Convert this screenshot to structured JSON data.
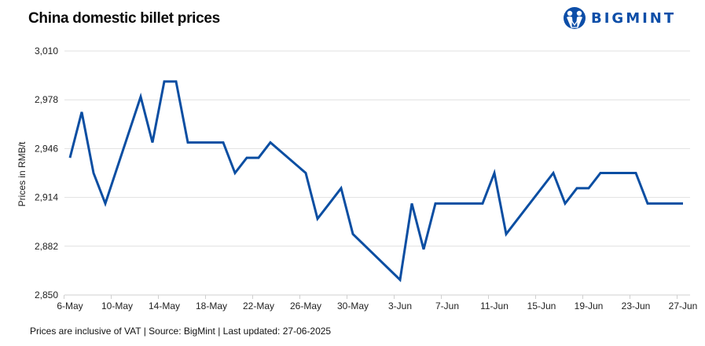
{
  "header": {
    "title": "China domestic billet prices",
    "logo_text": "BIGMINT",
    "logo_icon": "people-logo-icon"
  },
  "footer": {
    "note": "Prices are inclusive of VAT | Source: BigMint | Last updated: 27-06-2025"
  },
  "colors": {
    "line": "#0B4EA2",
    "grid": "#E0E0E0",
    "brand": "#0D4EA8"
  },
  "chart_data": {
    "type": "line",
    "title": "China domestic billet prices",
    "xlabel": "",
    "ylabel": "Prices in RMB/t",
    "ylim": [
      2850,
      3010
    ],
    "yticks": [
      "2,850",
      "2,882",
      "2,914",
      "2,946",
      "2,978",
      "3,010"
    ],
    "ytick_values": [
      2850,
      2882,
      2914,
      2946,
      2978,
      3010
    ],
    "xtick_labels": [
      "6-May",
      "10-May",
      "14-May",
      "18-May",
      "22-May",
      "26-May",
      "30-May",
      "3-Jun",
      "7-Jun",
      "11-Jun",
      "15-Jun",
      "19-Jun",
      "23-Jun",
      "27-Jun"
    ],
    "grid": true,
    "legend": null,
    "series": [
      {
        "name": "China domestic billet price",
        "points": [
          {
            "date": "6-May",
            "day": 0,
            "value": 2940
          },
          {
            "date": "7-May",
            "day": 1,
            "value": 2970
          },
          {
            "date": "8-May",
            "day": 2,
            "value": 2930
          },
          {
            "date": "9-May",
            "day": 3,
            "value": 2910
          },
          {
            "date": "12-May",
            "day": 6,
            "value": 2980
          },
          {
            "date": "13-May",
            "day": 7,
            "value": 2950
          },
          {
            "date": "14-May",
            "day": 8,
            "value": 2990
          },
          {
            "date": "15-May",
            "day": 9,
            "value": 2990
          },
          {
            "date": "16-May",
            "day": 10,
            "value": 2950
          },
          {
            "date": "19-May",
            "day": 13,
            "value": 2950
          },
          {
            "date": "20-May",
            "day": 14,
            "value": 2930
          },
          {
            "date": "21-May",
            "day": 15,
            "value": 2940
          },
          {
            "date": "22-May",
            "day": 16,
            "value": 2940
          },
          {
            "date": "23-May",
            "day": 17,
            "value": 2950
          },
          {
            "date": "26-May",
            "day": 20,
            "value": 2930
          },
          {
            "date": "27-May",
            "day": 21,
            "value": 2900
          },
          {
            "date": "28-May",
            "day": 22,
            "value": 2910
          },
          {
            "date": "29-May",
            "day": 23,
            "value": 2920
          },
          {
            "date": "30-May",
            "day": 24,
            "value": 2890
          },
          {
            "date": "3-Jun",
            "day": 28,
            "value": 2860
          },
          {
            "date": "4-Jun",
            "day": 29,
            "value": 2910
          },
          {
            "date": "5-Jun",
            "day": 30,
            "value": 2880
          },
          {
            "date": "6-Jun",
            "day": 31,
            "value": 2910
          },
          {
            "date": "9-Jun",
            "day": 34,
            "value": 2910
          },
          {
            "date": "10-Jun",
            "day": 35,
            "value": 2910
          },
          {
            "date": "11-Jun",
            "day": 36,
            "value": 2930
          },
          {
            "date": "12-Jun",
            "day": 37,
            "value": 2890
          },
          {
            "date": "13-Jun",
            "day": 38,
            "value": 2900
          },
          {
            "date": "16-Jun",
            "day": 41,
            "value": 2930
          },
          {
            "date": "17-Jun",
            "day": 42,
            "value": 2910
          },
          {
            "date": "18-Jun",
            "day": 43,
            "value": 2920
          },
          {
            "date": "19-Jun",
            "day": 44,
            "value": 2920
          },
          {
            "date": "20-Jun",
            "day": 45,
            "value": 2930
          },
          {
            "date": "23-Jun",
            "day": 48,
            "value": 2930
          },
          {
            "date": "24-Jun",
            "day": 49,
            "value": 2910
          },
          {
            "date": "25-Jun",
            "day": 50,
            "value": 2910
          },
          {
            "date": "26-Jun",
            "day": 51,
            "value": 2910
          },
          {
            "date": "27-Jun",
            "day": 52,
            "value": 2910
          }
        ]
      }
    ]
  }
}
